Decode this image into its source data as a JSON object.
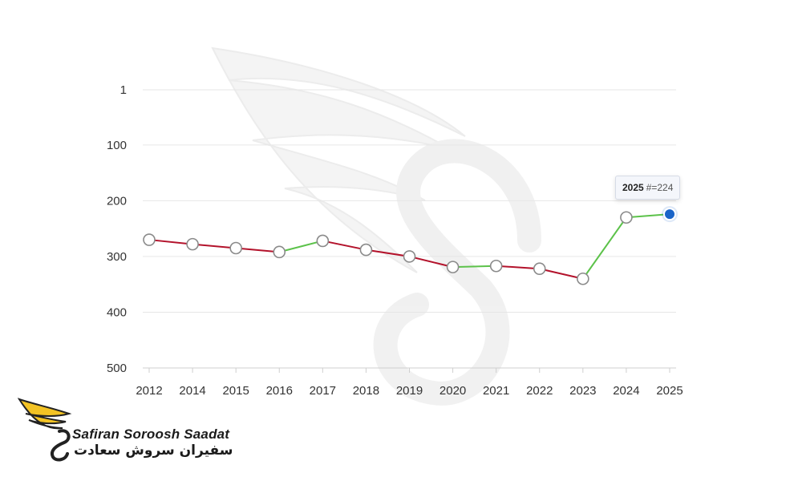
{
  "chart_data": {
    "type": "line",
    "x": [
      "2012",
      "2014",
      "2015",
      "2016",
      "2017",
      "2018",
      "2019",
      "2020",
      "2021",
      "2022",
      "2023",
      "2024",
      "2025"
    ],
    "y": [
      270,
      278,
      285,
      292,
      272,
      288,
      300,
      319,
      317,
      322,
      340,
      230,
      224
    ],
    "y_axis": {
      "ticks": [
        "1",
        "100",
        "200",
        "300",
        "400",
        "500"
      ],
      "reversed": true,
      "ylim": [
        1,
        500
      ]
    },
    "grid": true,
    "colors": {
      "up": "#5cc24a",
      "down": "#b3122b",
      "highlight": "#1a64c8"
    },
    "highlight": {
      "x": "2025",
      "label": "#=224"
    }
  },
  "watermark": {
    "logo": "swan-s-logo"
  },
  "brand": {
    "name_en": "Safiran Soroosh Saadat",
    "name_fa": "سفیران سروش سعادت",
    "logo": "swan-logo-icon"
  }
}
